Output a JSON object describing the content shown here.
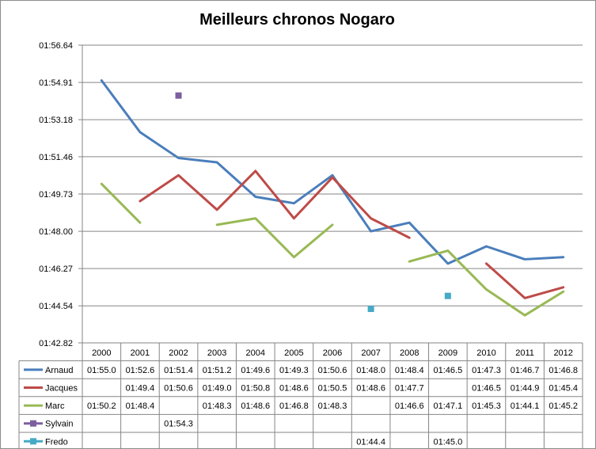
{
  "chart_data": {
    "type": "line",
    "title": "Meilleurs chronos Nogaro",
    "xlabel": "",
    "ylabel": "",
    "yticks": [
      "01:42.82",
      "01:44.54",
      "01:46.27",
      "01:48.00",
      "01:49.73",
      "01:51.46",
      "01:53.18",
      "01:54.91",
      "01:56.64"
    ],
    "ylim_seconds": [
      102.82,
      116.64
    ],
    "grid": true,
    "legend": "data-table",
    "categories": [
      "2000",
      "2001",
      "2002",
      "2003",
      "2004",
      "2005",
      "2006",
      "2007",
      "2008",
      "2009",
      "2010",
      "2011",
      "2012"
    ],
    "series": [
      {
        "name": "Arnaud",
        "color": "#4a7ebb",
        "marker": false,
        "values": [
          "01:55.0",
          "01:52.6",
          "01:51.4",
          "01:51.2",
          "01:49.6",
          "01:49.3",
          "01:50.6",
          "01:48.0",
          "01:48.4",
          "01:46.5",
          "01:47.3",
          "01:46.7",
          "01:46.8"
        ]
      },
      {
        "name": "Jacques",
        "color": "#be4b48",
        "marker": false,
        "values": [
          null,
          "01:49.4",
          "01:50.6",
          "01:49.0",
          "01:50.8",
          "01:48.6",
          "01:50.5",
          "01:48.6",
          "01:47.7",
          null,
          "01:46.5",
          "01:44.9",
          "01:45.4"
        ]
      },
      {
        "name": "Marc",
        "color": "#98b954",
        "marker": false,
        "values": [
          "01:50.2",
          "01:48.4",
          null,
          "01:48.3",
          "01:48.6",
          "01:46.8",
          "01:48.3",
          null,
          "01:46.6",
          "01:47.1",
          "01:45.3",
          "01:44.1",
          "01:45.2"
        ]
      },
      {
        "name": "Sylvain",
        "color": "#7d5fa0",
        "marker": true,
        "values": [
          null,
          null,
          "01:54.3",
          null,
          null,
          null,
          null,
          null,
          null,
          null,
          null,
          null,
          null
        ]
      },
      {
        "name": "Fredo",
        "color": "#46aac5",
        "marker": true,
        "values": [
          null,
          null,
          null,
          null,
          null,
          null,
          null,
          "01:44.4",
          null,
          "01:45.0",
          null,
          null,
          null
        ]
      }
    ]
  }
}
